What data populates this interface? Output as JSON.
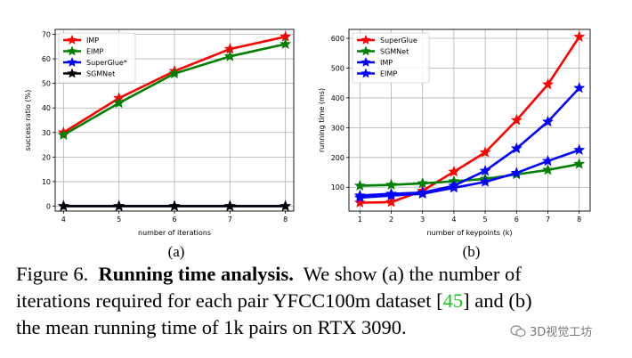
{
  "chart_data": [
    {
      "type": "line",
      "x": [
        4,
        5,
        6,
        7,
        8
      ],
      "xlim": [
        3.85,
        8.15
      ],
      "ylim": [
        -2,
        72
      ],
      "yticks": [
        0,
        10,
        20,
        30,
        40,
        50,
        60,
        70
      ],
      "xlabel": "number of iterations",
      "ylabel": "success ratio (%)",
      "grid": true,
      "legend": "top-left",
      "series": [
        {
          "name": "IMP",
          "color": "#ff0000",
          "values": [
            30,
            44,
            55,
            64,
            69
          ]
        },
        {
          "name": "EIMP",
          "color": "#008000",
          "values": [
            29,
            42,
            54,
            61,
            66
          ]
        },
        {
          "name": "SuperGlue*",
          "color": "#0000ff",
          "values": [
            0,
            0,
            0,
            0,
            0
          ]
        },
        {
          "name": "SGMNet",
          "color": "#000000",
          "values": [
            0,
            0,
            0,
            0,
            0
          ]
        }
      ],
      "sublabel": "(a)"
    },
    {
      "type": "line",
      "x": [
        1,
        2,
        3,
        4,
        5,
        6,
        7,
        8
      ],
      "xlim": [
        0.65,
        8.35
      ],
      "ylim": [
        20,
        630
      ],
      "yticks": [
        100,
        200,
        300,
        400,
        500,
        600
      ],
      "xlabel": "number of keypoints (k)",
      "ylabel": "running time (ms)",
      "grid": true,
      "legend": "top-left",
      "series": [
        {
          "name": "SuperGlue",
          "color": "#ff0000",
          "values": [
            48,
            50,
            88,
            152,
            217,
            325,
            445,
            605
          ]
        },
        {
          "name": "SGMNet",
          "color": "#008000",
          "values": [
            105,
            108,
            113,
            120,
            128,
            143,
            158,
            178
          ]
        },
        {
          "name": "IMP",
          "color": "#0000ff",
          "values": [
            72,
            78,
            82,
            105,
            155,
            230,
            320,
            433
          ]
        },
        {
          "name": "EIMP",
          "color": "#0000ff",
          "values": [
            65,
            72,
            78,
            98,
            118,
            148,
            188,
            225
          ]
        }
      ],
      "sublabel": "(b)"
    }
  ],
  "caption": {
    "prefix": "Figure 6.",
    "bold": "Running time analysis.",
    "line1_rest": "We show (a) the number of",
    "line2_a": "iterations required for each pair YFCC100m dataset [",
    "cite": "45",
    "line2_b": "] and (b)",
    "line3": "the mean running time of 1k pairs on RTX 3090."
  },
  "watermark": "3D视觉工坊"
}
